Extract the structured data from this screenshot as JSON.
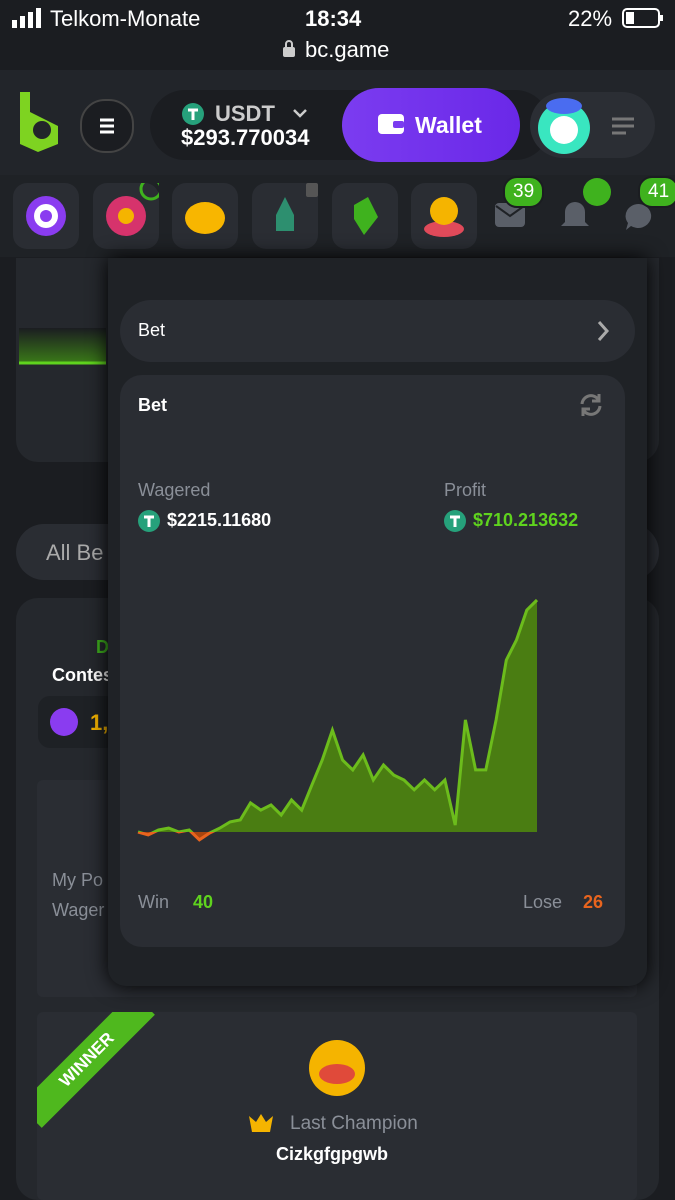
{
  "status_bar": {
    "carrier": "Telkom-Monate",
    "time": "18:34",
    "battery": "22%",
    "url": "bc.game"
  },
  "header": {
    "currency": "USDT",
    "balance": "$293.770034",
    "wallet_button": "Wallet"
  },
  "nav_badges": {
    "mail": "39",
    "chat": "41"
  },
  "background": {
    "tab": "All Be",
    "contest_label": "D",
    "contest": "Contes",
    "amount": "1,",
    "my_position": "My Po",
    "wagered": "Wager",
    "winner_ribbon": "WINNER",
    "last_champion": "Last Champion",
    "champion_name": "Cizkgfgpgwb"
  },
  "live_stats": {
    "select": "Bet",
    "card_title": "Bet",
    "wagered_label": "Wagered",
    "wagered": "$2215.11680",
    "profit_label": "Profit",
    "profit": "$710.213632",
    "win_label": "Win",
    "win": 40,
    "lose_label": "Lose",
    "lose": 26,
    "profit_chart": {
      "type": "area",
      "values": [
        0,
        -9,
        6,
        12,
        0,
        6,
        -24,
        -3,
        12,
        31,
        37,
        89,
        67,
        83,
        52,
        98,
        67,
        144,
        220,
        312,
        220,
        190,
        236,
        159,
        205,
        174,
        159,
        129,
        159,
        129,
        159,
        21,
        343,
        190,
        190,
        343,
        526,
        588,
        679,
        710
      ]
    }
  }
}
